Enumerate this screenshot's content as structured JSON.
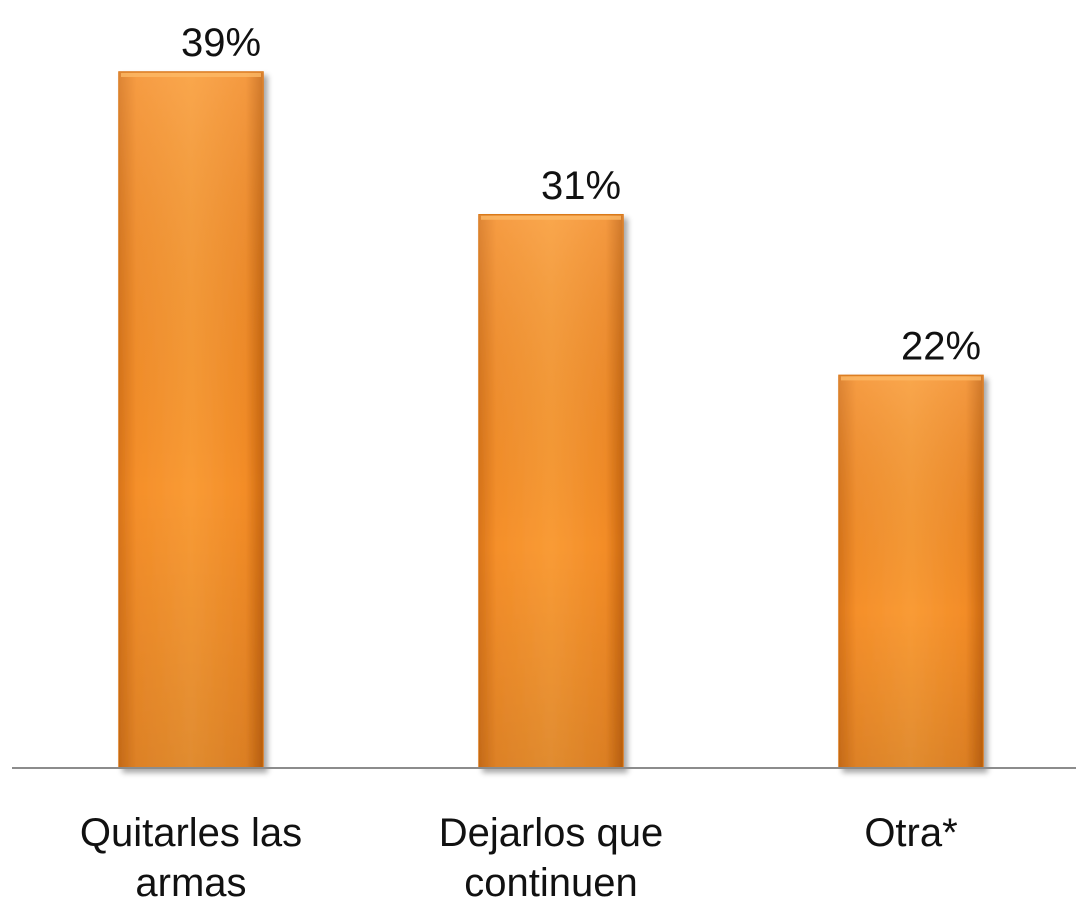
{
  "chart_data": {
    "type": "bar",
    "categories": [
      [
        "Quitarles las",
        "armas"
      ],
      [
        "Dejarlos que",
        "continuen"
      ],
      [
        "Otra*"
      ]
    ],
    "values": [
      39,
      31,
      22
    ],
    "value_labels": [
      "39%",
      "31%",
      "22%"
    ],
    "title": "",
    "xlabel": "",
    "ylabel": "",
    "ylim": [
      0,
      39
    ],
    "grid": false,
    "legend": "none",
    "bar_color": "#f7952c",
    "bar_color_dark": "#d97412",
    "axis_color": "#8c8c8c"
  }
}
